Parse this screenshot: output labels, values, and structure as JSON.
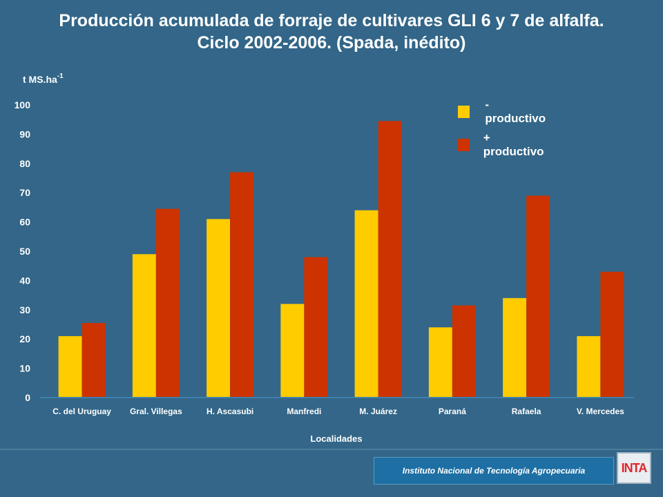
{
  "title_line1": "Producción acumulada de forraje de cultivares GLI 6 y 7 de alfalfa.",
  "title_line2": "Ciclo 2002-2006. (Spada, inédito)",
  "footer": {
    "institution": "Instituto Nacional de Tecnología Agropecuaria",
    "logo_text": "INTA"
  },
  "colors": {
    "background": "#336688",
    "series_low": "#ffcc00",
    "series_high": "#cc3300"
  },
  "chart_data": {
    "type": "bar",
    "title": "Producción acumulada de forraje de cultivares GLI 6 y 7 de alfalfa. Ciclo 2002-2006. (Spada, inédito)",
    "ylabel": "t MS.ha",
    "ylabel_superscript": "-1",
    "xlabel": "Localidades",
    "ylim": [
      0,
      100
    ],
    "yticks": [
      0,
      10,
      20,
      30,
      40,
      50,
      60,
      70,
      80,
      90,
      100
    ],
    "categories": [
      "C. del Uruguay",
      "Gral. Villegas",
      "H. Ascasubi",
      "Manfredi",
      "M. Juárez",
      "Paraná",
      "Rafaela",
      "V. Mercedes"
    ],
    "series": [
      {
        "name": "- productivo",
        "color": "#ffcc00",
        "values": [
          21,
          49,
          61,
          32,
          64,
          24,
          34,
          21
        ]
      },
      {
        "name": "+ productivo",
        "color": "#cc3300",
        "values": [
          25.5,
          64.5,
          77,
          48,
          94.5,
          31.5,
          69,
          43
        ]
      }
    ],
    "legend_position": "top-right",
    "grid": false
  }
}
